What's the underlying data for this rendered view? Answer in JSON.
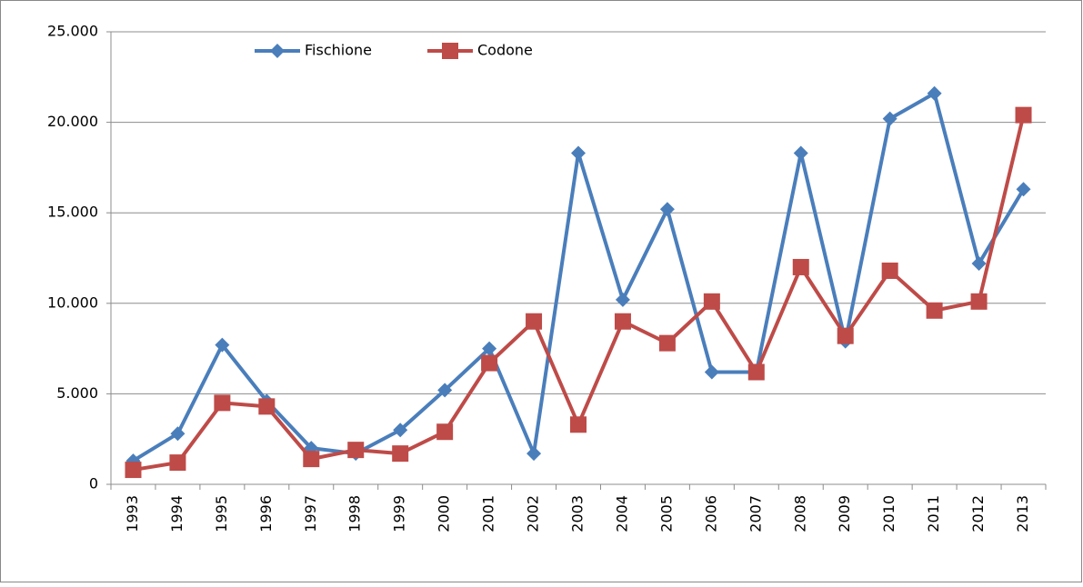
{
  "chart_data": {
    "type": "line",
    "categories": [
      "1993",
      "1994",
      "1995",
      "1996",
      "1997",
      "1998",
      "1999",
      "2000",
      "2001",
      "2002",
      "2003",
      "2004",
      "2005",
      "2006",
      "2007",
      "2008",
      "2009",
      "2010",
      "2011",
      "2012",
      "2013"
    ],
    "series": [
      {
        "name": "Fischione",
        "color": "#4a7ebb",
        "marker": "diamond",
        "values": [
          1300,
          2800,
          7700,
          4600,
          2000,
          1700,
          3000,
          5200,
          7500,
          1700,
          18300,
          10200,
          15200,
          6200,
          6200,
          18300,
          7900,
          20200,
          21600,
          12200,
          16300
        ]
      },
      {
        "name": "Codone",
        "color": "#be4b48",
        "marker": "square",
        "values": [
          800,
          1200,
          4500,
          4300,
          1400,
          1900,
          1700,
          2900,
          6700,
          9000,
          3300,
          9000,
          7800,
          10100,
          6200,
          12000,
          8200,
          11800,
          9600,
          10100,
          20400
        ]
      }
    ],
    "ylim": [
      0,
      25000
    ],
    "yticks": [
      0,
      {
        "value": 5000,
        "label": "5.000"
      },
      {
        "value": 10000,
        "label": "10.000"
      },
      {
        "value": 15000,
        "label": "15.000"
      },
      {
        "value": 20000,
        "label": "20.000"
      },
      {
        "value": 25000,
        "label": "25.000"
      }
    ],
    "grid": true
  }
}
